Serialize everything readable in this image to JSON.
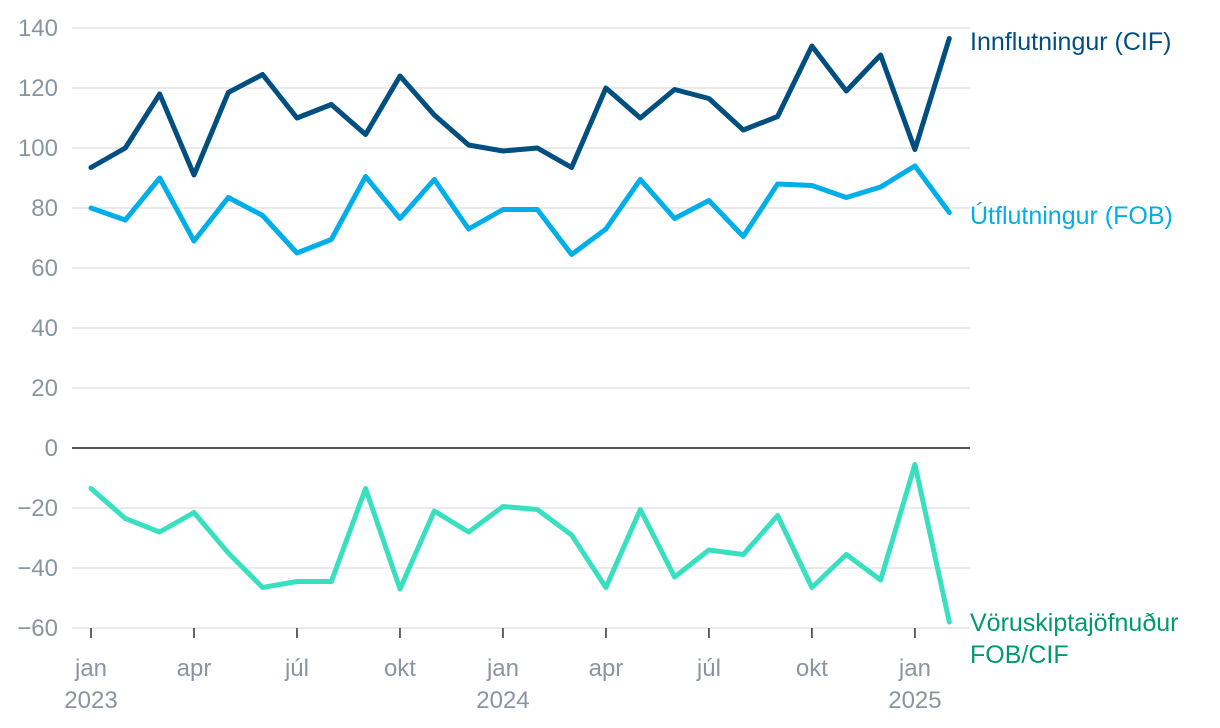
{
  "chart_data": {
    "type": "line",
    "title": "",
    "xlabel": "",
    "ylabel": "",
    "ylim": [
      -60,
      140
    ],
    "yticks": [
      "140",
      "120",
      "100",
      "80",
      "60",
      "40",
      "20",
      "0",
      "−20",
      "−40",
      "−60"
    ],
    "ytick_values": [
      140,
      120,
      100,
      80,
      60,
      40,
      20,
      0,
      -20,
      -40,
      -60
    ],
    "grid": true,
    "x": [
      "2023-01",
      "2023-02",
      "2023-03",
      "2023-04",
      "2023-05",
      "2023-06",
      "2023-07",
      "2023-08",
      "2023-09",
      "2023-10",
      "2023-11",
      "2023-12",
      "2024-01",
      "2024-02",
      "2024-03",
      "2024-04",
      "2024-05",
      "2024-06",
      "2024-07",
      "2024-08",
      "2024-09",
      "2024-10",
      "2024-11",
      "2024-12",
      "2025-01",
      "2025-02"
    ],
    "xticks": [
      {
        "month": "jan",
        "year": "2023",
        "index": 0
      },
      {
        "month": "apr",
        "year": "",
        "index": 3
      },
      {
        "month": "júl",
        "year": "",
        "index": 6
      },
      {
        "month": "okt",
        "year": "",
        "index": 9
      },
      {
        "month": "jan",
        "year": "2024",
        "index": 12
      },
      {
        "month": "apr",
        "year": "",
        "index": 15
      },
      {
        "month": "júl",
        "year": "",
        "index": 18
      },
      {
        "month": "okt",
        "year": "",
        "index": 21
      },
      {
        "month": "jan",
        "year": "2025",
        "index": 24
      }
    ],
    "series": [
      {
        "name": "Innflutningur (CIF)",
        "color": "#004f80",
        "label_lines": [
          "Innflutningur (CIF)"
        ],
        "values": [
          93.5,
          100,
          118,
          91,
          118.5,
          124.5,
          110,
          114.5,
          104.5,
          124,
          111,
          101,
          99,
          100,
          93.5,
          120,
          110,
          119.5,
          116.5,
          106,
          110.5,
          134,
          119,
          131,
          99.5,
          136.5
        ]
      },
      {
        "name": "Útflutningur (FOB)",
        "color": "#00aee9",
        "label_lines": [
          "Útflutningur (FOB)"
        ],
        "values": [
          80,
          76,
          90,
          69,
          83.5,
          77.5,
          65,
          69.5,
          90.5,
          76.5,
          89.5,
          73,
          79.5,
          79.5,
          64.5,
          73,
          89.5,
          76.5,
          82.5,
          70.5,
          88,
          87.5,
          83.5,
          87,
          94,
          78.5
        ]
      },
      {
        "name": "Vöruskiptajöfnuður FOB/CIF",
        "color": "#38e0c0",
        "label_color": "#009a70",
        "label_lines": [
          "Vöruskiptajöfnuður",
          "FOB/CIF"
        ],
        "values": [
          -13.5,
          -23.5,
          -28,
          -21.5,
          -35,
          -46.5,
          -44.5,
          -44.5,
          -13.5,
          -47,
          -21,
          -28,
          -19.5,
          -20.5,
          -29,
          -46.5,
          -20.5,
          -43,
          -34,
          -35.5,
          -22.5,
          -46.5,
          -35.5,
          -44,
          -5.5,
          -58
        ]
      }
    ]
  }
}
